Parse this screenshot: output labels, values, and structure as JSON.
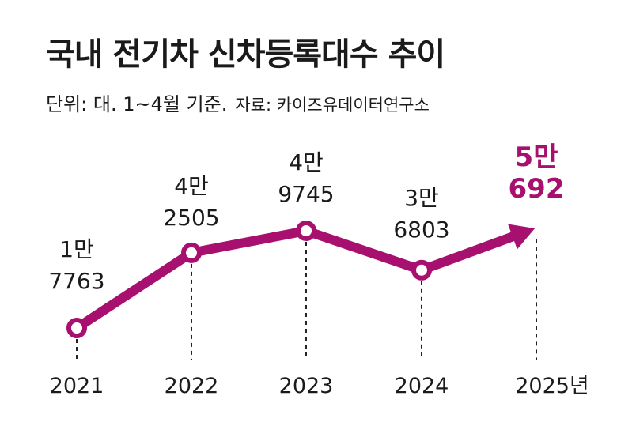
{
  "header": {
    "title": "국내 전기차 신차등록대수 추이",
    "unit_note": "단위: 대. 1~4월 기준.",
    "source": "자료: 카이즈유데이터연구소"
  },
  "chart_data": {
    "type": "line",
    "title": "국내 전기차 신차등록대수 추이",
    "unit": "대",
    "categories": [
      "2021",
      "2022",
      "2023",
      "2024",
      "2025년"
    ],
    "values": [
      17763,
      42505,
      49745,
      36803,
      50692
    ],
    "labels": [
      [
        "1만",
        "7763"
      ],
      [
        "4만",
        "2505"
      ],
      [
        "4만",
        "9745"
      ],
      [
        "3만",
        "6803"
      ],
      [
        "5만",
        "692"
      ]
    ],
    "ylim": [
      10000,
      60000
    ],
    "grid": false,
    "legend": "none",
    "colors": {
      "line": "#a8106f",
      "text": "#1a1a1a",
      "highlight": "#a8106f",
      "marker_fill": "#ffffff",
      "guide": "#222222"
    }
  }
}
